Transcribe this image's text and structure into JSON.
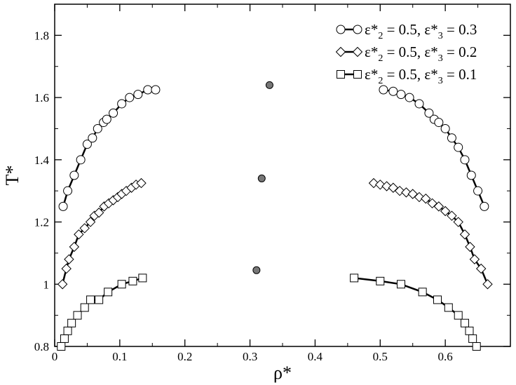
{
  "chart_data": {
    "type": "scatter",
    "xlabel": "ρ*",
    "ylabel": "T*",
    "xlim": [
      0,
      0.7
    ],
    "ylim": [
      0.8,
      1.9
    ],
    "xticks": [
      0,
      0.1,
      0.2,
      0.3,
      0.4,
      0.5,
      0.6
    ],
    "xtick_labels": [
      "0",
      "0.1",
      "0.2",
      "0.3",
      "0.4",
      "0.5",
      "0.6"
    ],
    "yticks": [
      0.8,
      1.0,
      1.2,
      1.4,
      1.6,
      1.8
    ],
    "ytick_labels": [
      "0.8",
      "1",
      "1.2",
      "1.4",
      "1.6",
      "1.8"
    ],
    "grid": false,
    "legend_position": "top-right",
    "series": [
      {
        "name": "ε*2 = 0.5, ε*3 = 0.3",
        "legend_parts": [
          "ε*",
          "2",
          " = 0.5, ε*",
          "3",
          " = 0.3"
        ],
        "marker": "circle",
        "left": [
          [
            0.013,
            1.25
          ],
          [
            0.02,
            1.3
          ],
          [
            0.03,
            1.35
          ],
          [
            0.04,
            1.4
          ],
          [
            0.05,
            1.45
          ],
          [
            0.058,
            1.47
          ],
          [
            0.066,
            1.5
          ],
          [
            0.075,
            1.52
          ],
          [
            0.08,
            1.53
          ],
          [
            0.09,
            1.55
          ],
          [
            0.103,
            1.58
          ],
          [
            0.115,
            1.6
          ],
          [
            0.128,
            1.61
          ],
          [
            0.143,
            1.625
          ],
          [
            0.155,
            1.625
          ]
        ],
        "right": [
          [
            0.505,
            1.625
          ],
          [
            0.52,
            1.62
          ],
          [
            0.532,
            1.61
          ],
          [
            0.545,
            1.6
          ],
          [
            0.56,
            1.58
          ],
          [
            0.575,
            1.55
          ],
          [
            0.583,
            1.53
          ],
          [
            0.59,
            1.52
          ],
          [
            0.6,
            1.5
          ],
          [
            0.61,
            1.47
          ],
          [
            0.62,
            1.44
          ],
          [
            0.63,
            1.4
          ],
          [
            0.64,
            1.35
          ],
          [
            0.65,
            1.3
          ],
          [
            0.66,
            1.25
          ]
        ]
      },
      {
        "name": "ε*2 = 0.5, ε*3 = 0.2",
        "legend_parts": [
          "ε*",
          "2",
          " = 0.5, ε*",
          "3",
          " = 0.2"
        ],
        "marker": "diamond",
        "left": [
          [
            0.012,
            1.0
          ],
          [
            0.018,
            1.05
          ],
          [
            0.022,
            1.08
          ],
          [
            0.03,
            1.12
          ],
          [
            0.037,
            1.16
          ],
          [
            0.046,
            1.18
          ],
          [
            0.055,
            1.2
          ],
          [
            0.061,
            1.22
          ],
          [
            0.068,
            1.23
          ],
          [
            0.076,
            1.25
          ],
          [
            0.083,
            1.26
          ],
          [
            0.09,
            1.27
          ],
          [
            0.097,
            1.28
          ],
          [
            0.103,
            1.29
          ],
          [
            0.11,
            1.3
          ],
          [
            0.118,
            1.31
          ],
          [
            0.125,
            1.32
          ],
          [
            0.133,
            1.325
          ]
        ],
        "right": [
          [
            0.49,
            1.325
          ],
          [
            0.5,
            1.32
          ],
          [
            0.51,
            1.315
          ],
          [
            0.52,
            1.31
          ],
          [
            0.53,
            1.3
          ],
          [
            0.54,
            1.295
          ],
          [
            0.55,
            1.29
          ],
          [
            0.56,
            1.28
          ],
          [
            0.57,
            1.275
          ],
          [
            0.58,
            1.26
          ],
          [
            0.59,
            1.25
          ],
          [
            0.6,
            1.235
          ],
          [
            0.61,
            1.22
          ],
          [
            0.62,
            1.2
          ],
          [
            0.63,
            1.16
          ],
          [
            0.638,
            1.12
          ],
          [
            0.645,
            1.08
          ],
          [
            0.655,
            1.05
          ],
          [
            0.665,
            1.0
          ]
        ]
      },
      {
        "name": "ε*2 = 0.5, ε*3 = 0.1",
        "legend_parts": [
          "ε*",
          "2",
          " = 0.5, ε*",
          "3",
          " = 0.1"
        ],
        "marker": "square",
        "left": [
          [
            0.01,
            0.8
          ],
          [
            0.015,
            0.825
          ],
          [
            0.02,
            0.85
          ],
          [
            0.026,
            0.875
          ],
          [
            0.035,
            0.9
          ],
          [
            0.046,
            0.925
          ],
          [
            0.055,
            0.95
          ],
          [
            0.068,
            0.95
          ],
          [
            0.082,
            0.975
          ],
          [
            0.103,
            1.0
          ],
          [
            0.12,
            1.01
          ],
          [
            0.135,
            1.02
          ]
        ],
        "right": [
          [
            0.46,
            1.02
          ],
          [
            0.5,
            1.01
          ],
          [
            0.532,
            1.0
          ],
          [
            0.565,
            0.975
          ],
          [
            0.588,
            0.95
          ],
          [
            0.605,
            0.925
          ],
          [
            0.62,
            0.9
          ],
          [
            0.63,
            0.875
          ],
          [
            0.637,
            0.85
          ],
          [
            0.642,
            0.825
          ],
          [
            0.648,
            0.8
          ]
        ]
      }
    ],
    "critical_points": [
      [
        0.33,
        1.64
      ],
      [
        0.318,
        1.34
      ],
      [
        0.31,
        1.045
      ]
    ]
  }
}
